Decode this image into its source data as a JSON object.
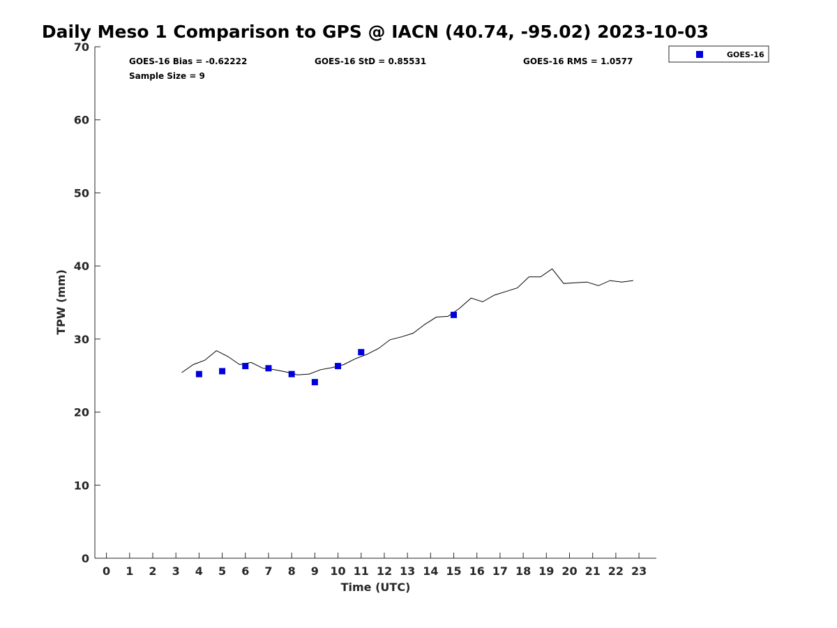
{
  "chart_data": {
    "type": "scatter",
    "title": "Daily Meso 1 Comparison to GPS @ IACN (40.74, -95.02) 2023-10-03",
    "xlabel": "Time (UTC)",
    "ylabel": "TPW (mm)",
    "xlim": [
      -0.5,
      23.75
    ],
    "ylim": [
      0,
      70
    ],
    "xticks": [
      0,
      1,
      2,
      3,
      4,
      5,
      6,
      7,
      8,
      9,
      10,
      11,
      12,
      13,
      14,
      15,
      16,
      17,
      18,
      19,
      20,
      21,
      22,
      23
    ],
    "yticks": [
      0,
      10,
      20,
      30,
      40,
      50,
      60,
      70
    ],
    "grid": false,
    "legend_position": "top-right outside",
    "stats": {
      "bias": "GOES-16 Bias = -0.62222",
      "std": "GOES-16 StD = 0.85531",
      "rms": "GOES-16 RMS = 1.0577",
      "sample": "Sample Size = 9"
    },
    "series": [
      {
        "name": "GOES-16",
        "kind": "scatter",
        "color": "#0000dd",
        "marker": "square",
        "x": [
          4,
          5,
          6,
          7,
          8,
          9,
          10,
          11,
          15
        ],
        "y": [
          25.2,
          25.6,
          26.3,
          26.0,
          25.2,
          24.1,
          26.3,
          28.2,
          33.3
        ]
      },
      {
        "kind": "line",
        "color": "#000000",
        "x": [
          3.25,
          3.75,
          4.25,
          4.75,
          5.25,
          5.75,
          6.25,
          6.75,
          7.25,
          7.75,
          8.25,
          8.75,
          9.25,
          9.75,
          10.25,
          10.75,
          11.25,
          11.75,
          12.25,
          12.75,
          13.25,
          13.75,
          14.25,
          14.75,
          15.25,
          15.75,
          16.25,
          16.75,
          17.25,
          17.75,
          18.25,
          18.75,
          19.25,
          19.75,
          20.25,
          20.75,
          21.25,
          21.75,
          22.25,
          22.75
        ],
        "y": [
          25.4,
          26.5,
          27.1,
          28.4,
          27.6,
          26.5,
          26.8,
          26.0,
          25.8,
          25.5,
          25.1,
          25.2,
          25.8,
          26.1,
          26.5,
          27.3,
          27.9,
          28.7,
          29.9,
          30.3,
          30.8,
          32.0,
          33.0,
          33.1,
          34.2,
          35.6,
          35.1,
          36.0,
          36.5,
          37.0,
          38.5,
          38.5,
          39.6,
          37.6,
          37.7,
          37.8,
          37.3,
          38.0,
          37.8,
          38.0
        ]
      }
    ]
  }
}
